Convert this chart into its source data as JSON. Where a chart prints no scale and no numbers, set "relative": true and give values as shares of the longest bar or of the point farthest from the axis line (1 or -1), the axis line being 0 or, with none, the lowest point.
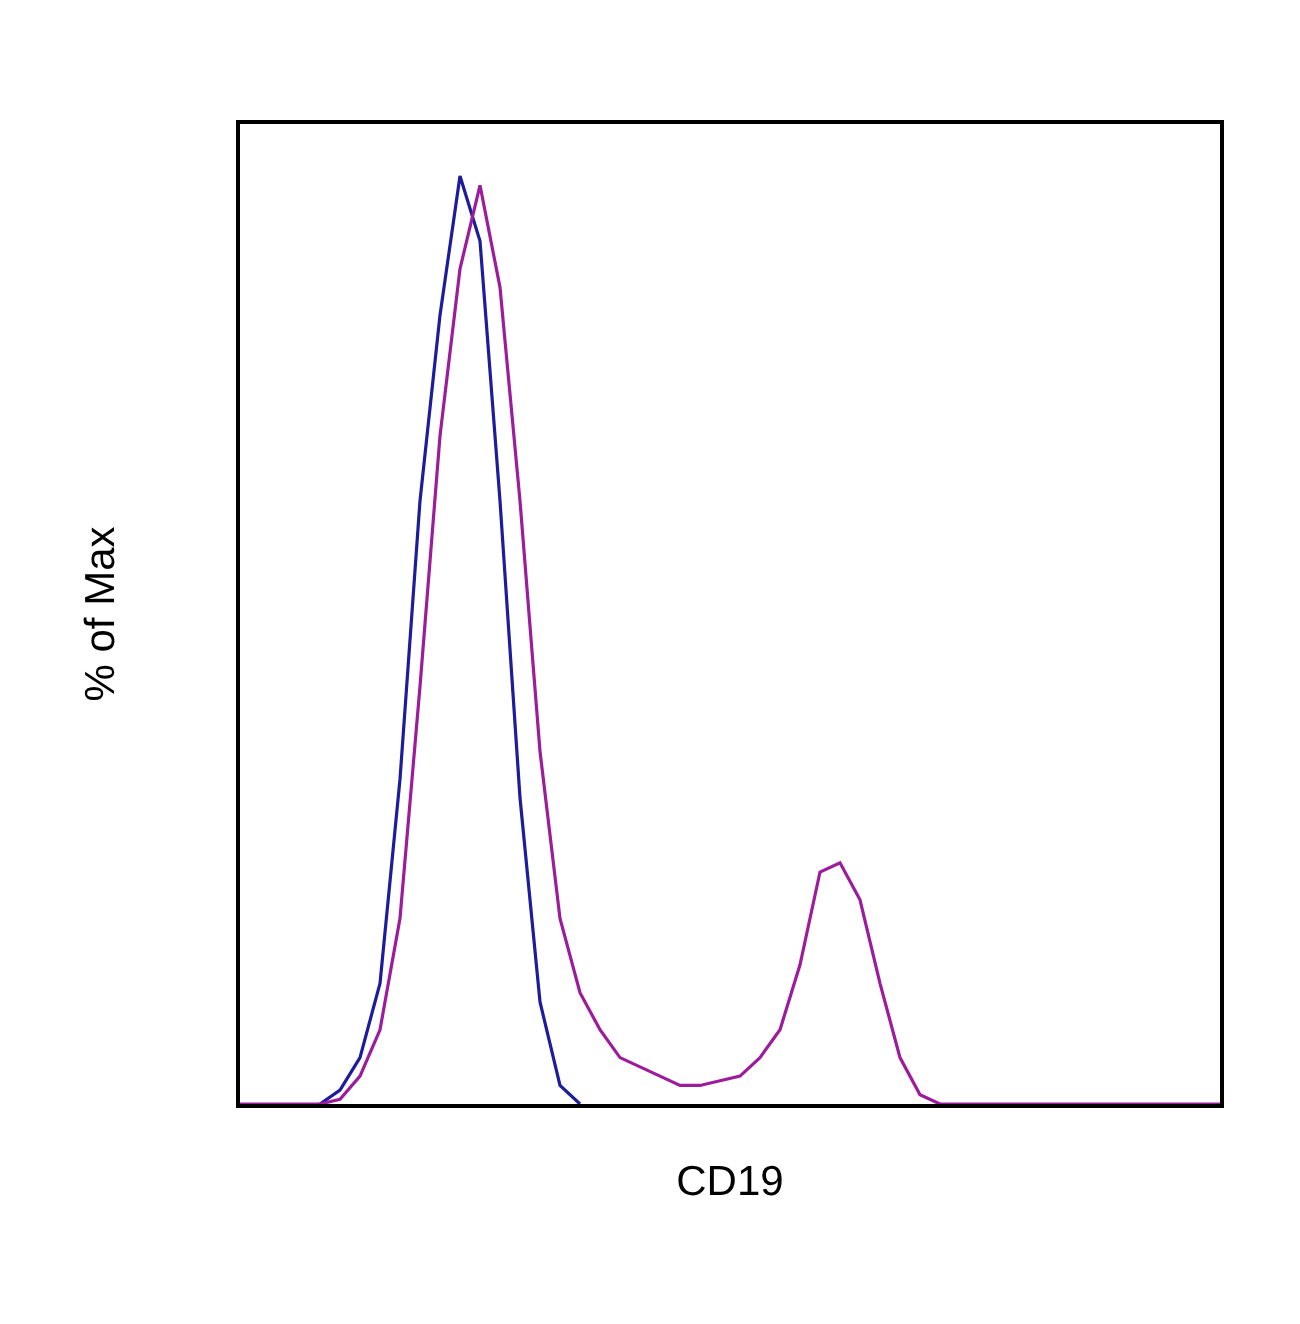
{
  "chart_data": {
    "type": "line",
    "xlabel": "CD19",
    "ylabel": "% of Max",
    "relative": true,
    "tick_labels": false,
    "marker": "none",
    "categories": [
      null,
      null,
      null,
      null,
      null,
      null,
      null,
      null,
      null,
      null,
      null,
      null,
      null,
      null,
      null,
      null,
      null,
      null,
      null,
      null,
      null,
      null,
      null,
      null,
      null,
      null,
      null,
      null,
      null,
      null,
      null,
      null,
      null,
      null,
      null,
      null,
      null,
      null,
      null,
      null,
      null,
      null,
      null,
      null,
      null,
      null,
      null,
      null,
      null,
      null
    ],
    "series": [
      {
        "color": "#1c1c9c",
        "values": [
          null,
          null,
          null,
          null,
          0,
          0.015,
          0.05,
          0.13,
          0.35,
          0.65,
          0.85,
          1.0,
          0.93,
          0.65,
          0.33,
          0.11,
          0.02,
          0,
          null,
          null,
          null,
          null,
          null,
          null,
          null,
          null,
          null,
          null,
          null,
          null,
          null,
          null,
          null,
          null,
          null,
          null,
          null,
          null,
          null,
          null,
          null,
          null,
          null,
          null,
          null,
          null,
          null,
          null,
          null,
          null
        ]
      },
      {
        "color": "#9c1c9c",
        "values": [
          0,
          0,
          0,
          0,
          0,
          0.005,
          0.03,
          0.08,
          0.2,
          0.45,
          0.72,
          0.9,
          0.99,
          0.88,
          0.65,
          0.38,
          0.2,
          0.12,
          0.08,
          0.05,
          0.04,
          0.03,
          0.02,
          0.02,
          0.025,
          0.03,
          0.05,
          0.08,
          0.15,
          0.25,
          0.26,
          0.22,
          0.13,
          0.05,
          0.01,
          0,
          0,
          0,
          0,
          0,
          0,
          0,
          0,
          0,
          0,
          0,
          0,
          0,
          0,
          0
        ]
      }
    ]
  }
}
